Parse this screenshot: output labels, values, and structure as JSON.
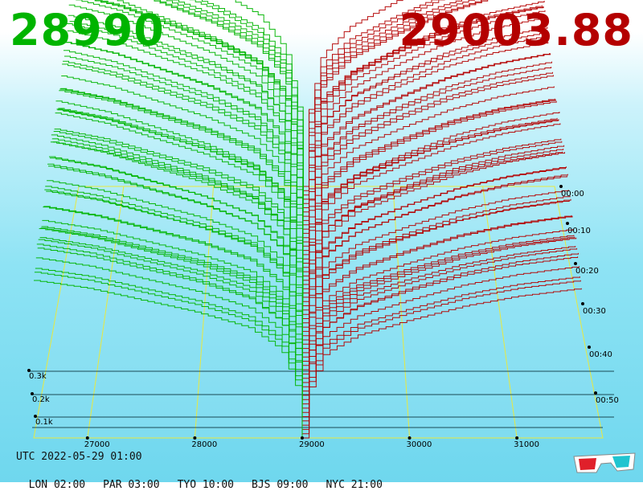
{
  "header": {
    "bid_price": "28990",
    "ask_price": "29003.88",
    "bid_color": "#00b400",
    "ask_color": "#b40000"
  },
  "footer": {
    "utc": "UTC 2022-05-29 01:00",
    "timezones": [
      {
        "label": "LON 02:00"
      },
      {
        "label": "PAR 03:00"
      },
      {
        "label": "TYO 10:00"
      },
      {
        "label": "BJS 09:00"
      },
      {
        "label": "NYC 21:00"
      }
    ],
    "glasses_icon": "anaglyph-3d-glasses-icon"
  },
  "chart_data": {
    "type": "area",
    "x_ticks": [
      "27000",
      "28000",
      "29000",
      "30000",
      "31000"
    ],
    "x_tick_values": [
      27000,
      28000,
      29000,
      30000,
      31000
    ],
    "time_ticks": [
      "00:00",
      "00:10",
      "00:20",
      "00:30",
      "00:40",
      "00:50"
    ],
    "volume_ticks": [
      "0.3k",
      "0.2k",
      "0.1k"
    ],
    "mid_price": 29000,
    "bid_color": "#00b400",
    "ask_color": "#b40000",
    "series": [
      {
        "side": "bid",
        "x": [
          26500,
          27000,
          27500,
          28000,
          28500,
          28800,
          28950,
          29000
        ],
        "y": [
          800,
          760,
          700,
          640,
          560,
          450,
          250,
          0
        ]
      },
      {
        "side": "ask",
        "x": [
          29000,
          29050,
          29200,
          29500,
          30000,
          30500,
          31000,
          31600
        ],
        "y": [
          0,
          240,
          430,
          520,
          600,
          670,
          720,
          760
        ]
      }
    ]
  }
}
